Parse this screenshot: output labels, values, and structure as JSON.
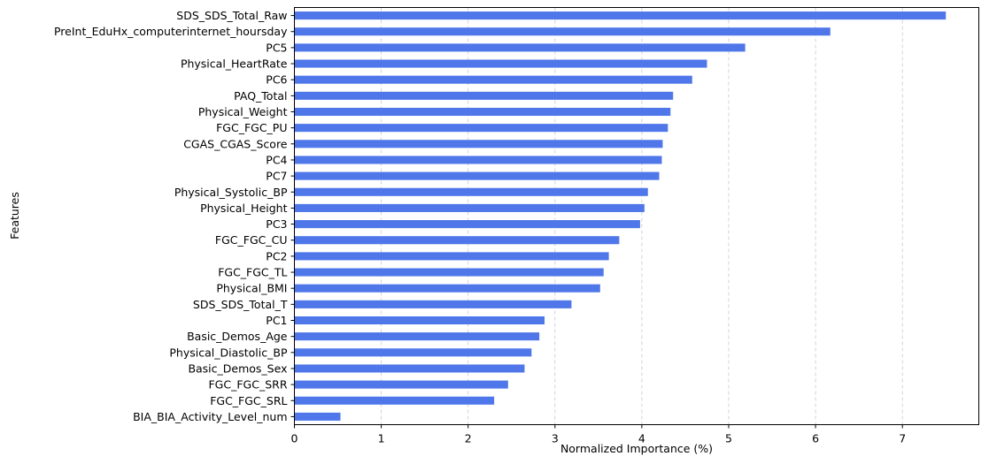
{
  "chart_data": {
    "type": "bar",
    "orientation": "horizontal",
    "title": "",
    "xlabel": "Normalized Importance (%)",
    "ylabel": "Features",
    "xlim": [
      0,
      7.5
    ],
    "xticks": [
      0,
      1,
      2,
      3,
      4,
      5,
      6,
      7
    ],
    "grid": "x-dashed",
    "bar_color": "#4f77ea",
    "grid_color": "#c8c8c8",
    "categories": [
      "SDS_SDS_Total_Raw",
      "PreInt_EduHx_computerinternet_hoursday",
      "PC5",
      "Physical_HeartRate",
      "PC6",
      "PAQ_Total",
      "Physical_Weight",
      "FGC_FGC_PU",
      "CGAS_CGAS_Score",
      "PC4",
      "PC7",
      "Physical_Systolic_BP",
      "Physical_Height",
      "PC3",
      "FGC_FGC_CU",
      "PC2",
      "FGC_FGC_TL",
      "Physical_BMI",
      "SDS_SDS_Total_T",
      "PC1",
      "Basic_Demos_Age",
      "Physical_Diastolic_BP",
      "Basic_Demos_Sex",
      "FGC_FGC_SRR",
      "FGC_FGC_SRL",
      "BIA_BIA_Activity_Level_num"
    ],
    "values": [
      7.5,
      6.17,
      5.19,
      4.75,
      4.58,
      4.36,
      4.33,
      4.3,
      4.24,
      4.23,
      4.2,
      4.07,
      4.03,
      3.98,
      3.74,
      3.62,
      3.56,
      3.52,
      3.19,
      2.88,
      2.82,
      2.73,
      2.65,
      2.46,
      2.3,
      0.53
    ]
  }
}
